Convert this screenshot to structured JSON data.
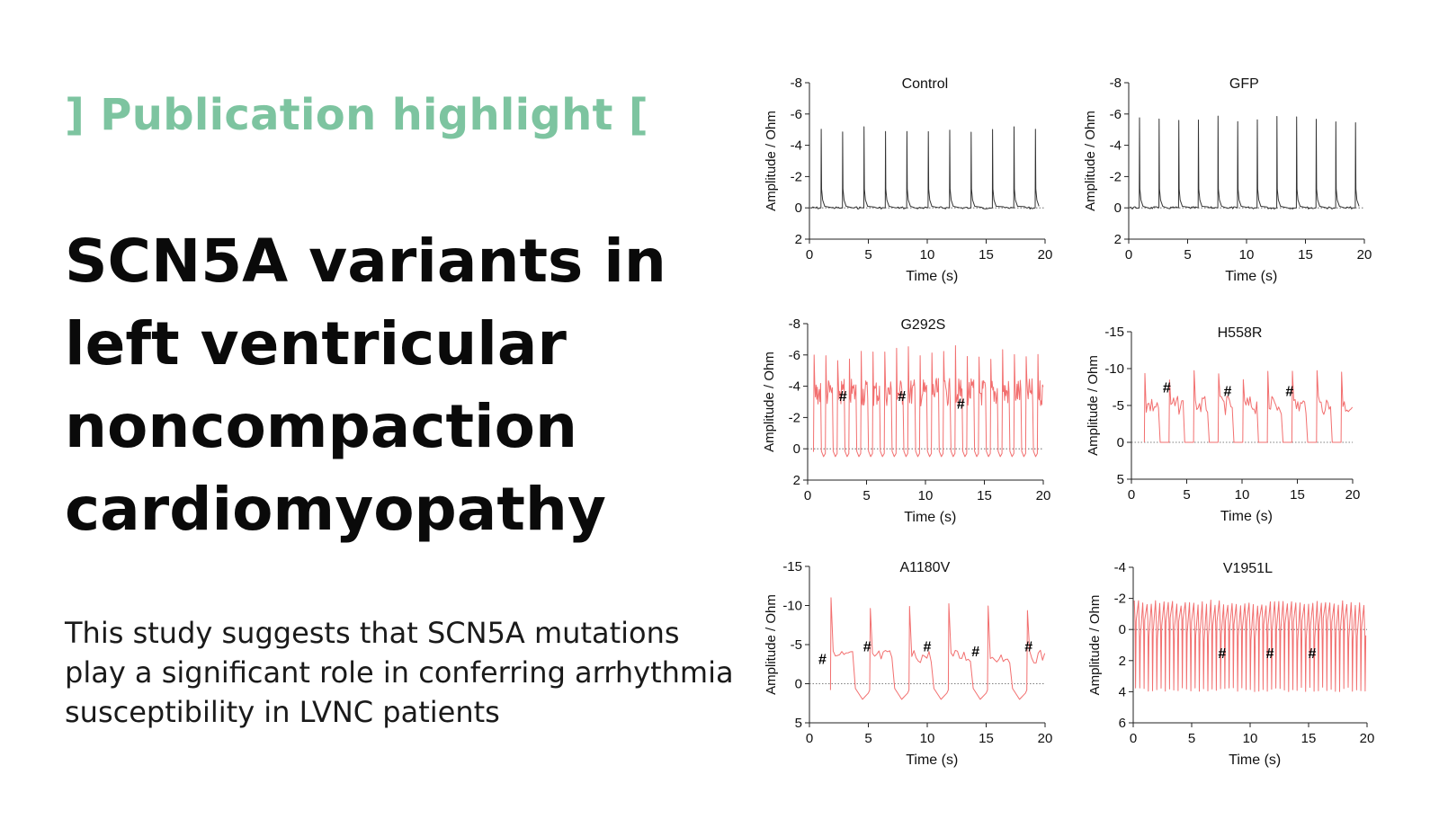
{
  "eyebrow": "] Publication highlight [",
  "title_lines": [
    "SCN5A variants in",
    "left ventricular",
    "noncompaction",
    "cardiomyopathy"
  ],
  "summary_lines": [
    "This study suggests that SCN5A mutations",
    "play a significant role in conferring arrhythmia",
    "susceptibility in LVNC patients"
  ],
  "colors": {
    "accent": "#7dc4a0",
    "control_trace": "#333333",
    "variant_trace": "#f26f6f"
  },
  "chart_data": [
    {
      "type": "line",
      "title": "Control",
      "xlabel": "Time (s)",
      "ylabel": "Amplitude  / Ohm",
      "xlim": [
        0,
        20
      ],
      "ylim": [
        2,
        -8
      ],
      "xticks": [
        0,
        5,
        10,
        15,
        20
      ],
      "yticks": [
        -8,
        -6,
        -4,
        -2,
        0,
        2
      ],
      "color": "control",
      "pattern": "spikes",
      "beats_per_20s": 11,
      "peak": -5.2,
      "baseline": 0,
      "markers": []
    },
    {
      "type": "line",
      "title": "GFP",
      "xlabel": "Time (s)",
      "ylabel": "Amplitude  / Ohm",
      "xlim": [
        0,
        20
      ],
      "ylim": [
        2,
        -8
      ],
      "xticks": [
        0,
        5,
        10,
        15,
        20
      ],
      "yticks": [
        -8,
        -6,
        -4,
        -2,
        0,
        2
      ],
      "color": "control",
      "pattern": "spikes",
      "beats_per_20s": 12,
      "peak": -5.9,
      "baseline": 0,
      "markers": []
    },
    {
      "type": "line",
      "title": "G292S",
      "xlabel": "Time (s)",
      "ylabel": "Amplitude  / Ohm",
      "xlim": [
        0,
        20
      ],
      "ylim": [
        2,
        -8
      ],
      "xticks": [
        0,
        5,
        10,
        15,
        20
      ],
      "yticks": [
        -8,
        -6,
        -4,
        -2,
        0,
        2
      ],
      "color": "variant",
      "pattern": "plateau",
      "beats_per_20s": 20,
      "peak": -6.6,
      "plateau": -3.6,
      "baseline": 0.5,
      "markers": [
        {
          "x": 3,
          "y": -3.4,
          "label": "#"
        },
        {
          "x": 8,
          "y": -3.4,
          "label": "#"
        },
        {
          "x": 13,
          "y": -2.9,
          "label": "#"
        }
      ]
    },
    {
      "type": "line",
      "title": "H558R",
      "xlabel": "Time (s)",
      "ylabel": "Amplitude  / Ohm",
      "xlim": [
        0,
        20
      ],
      "ylim": [
        5,
        -15
      ],
      "xticks": [
        0,
        5,
        10,
        15,
        20
      ],
      "yticks": [
        -15,
        -10,
        -5,
        0,
        5
      ],
      "color": "variant",
      "pattern": "plateau",
      "beats_per_20s": 9,
      "peak": -9.8,
      "plateau": -5,
      "baseline": 0,
      "markers": [
        {
          "x": 3.2,
          "y": -7.5,
          "label": "#"
        },
        {
          "x": 8.7,
          "y": -7,
          "label": "#"
        },
        {
          "x": 14.3,
          "y": -7,
          "label": "#"
        }
      ]
    },
    {
      "type": "line",
      "title": "A1180V",
      "xlabel": "Time (s)",
      "ylabel": "Amplitude  / Ohm",
      "xlim": [
        0,
        20
      ],
      "ylim": [
        5,
        -15
      ],
      "xticks": [
        0,
        5,
        10,
        15,
        20
      ],
      "yticks": [
        -15,
        -10,
        -5,
        0,
        5
      ],
      "color": "variant",
      "pattern": "plateau",
      "beats_per_20s": 6,
      "peak": -11,
      "plateau": -3.5,
      "baseline": 2,
      "markers": [
        {
          "x": 1.1,
          "y": -3.2,
          "label": "#"
        },
        {
          "x": 4.9,
          "y": -4.8,
          "label": "#"
        },
        {
          "x": 10,
          "y": -4.8,
          "label": "#"
        },
        {
          "x": 14.1,
          "y": -4.2,
          "label": "#"
        },
        {
          "x": 18.6,
          "y": -4.8,
          "label": "#"
        }
      ]
    },
    {
      "type": "line",
      "title": "V1951L",
      "xlabel": "Time (s)",
      "ylabel": "Amplitude  / Ohm",
      "xlim": [
        0,
        20
      ],
      "ylim": [
        6,
        -4
      ],
      "xticks": [
        0,
        5,
        10,
        15,
        20
      ],
      "yticks": [
        -4,
        -2,
        0,
        2,
        4,
        6
      ],
      "color": "variant",
      "pattern": "fibrillation",
      "beats_per_20s": 55,
      "peak": -1.9,
      "plateau": 0,
      "baseline": 4,
      "markers": [
        {
          "x": 7.6,
          "y": 1.5,
          "label": "#"
        },
        {
          "x": 11.7,
          "y": 1.5,
          "label": "#"
        },
        {
          "x": 15.3,
          "y": 1.5,
          "label": "#"
        }
      ]
    }
  ]
}
